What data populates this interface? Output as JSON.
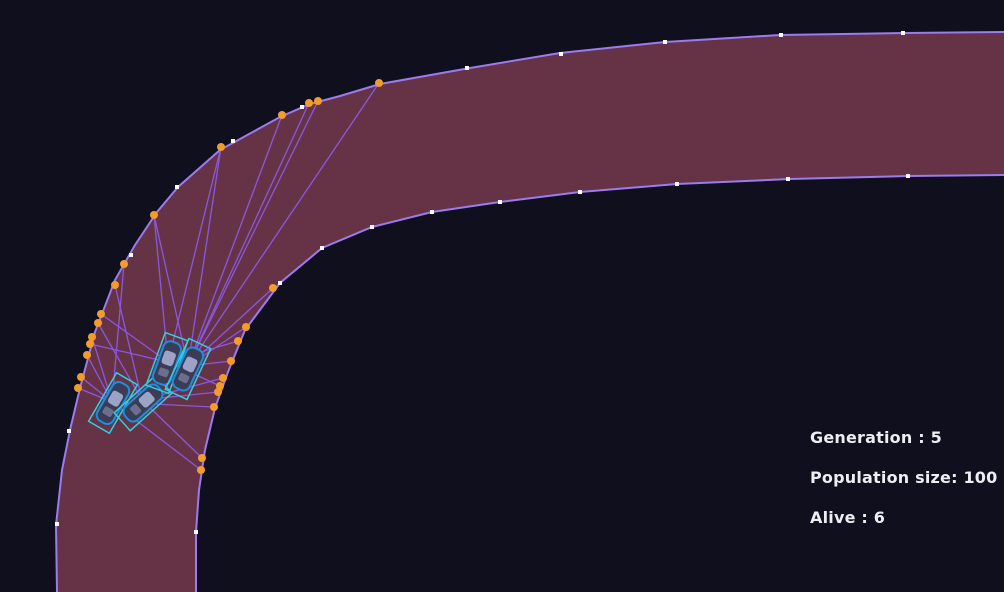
{
  "hud": {
    "generation_label": "Generation : 5",
    "population_label": "Population size: 100",
    "alive_label": "Alive : 6"
  },
  "simulation": {
    "generation": 5,
    "population_size": 100,
    "alive": 6
  },
  "colors": {
    "background": "#0f0f1e",
    "track_fill": "#663346",
    "track_border": "#9a7bf0",
    "sensor_ray": "#8f5cf0",
    "hit_point": "#f39c2b",
    "checkpoint": "#ffffff",
    "car_outline": "#2fd0e0"
  }
}
